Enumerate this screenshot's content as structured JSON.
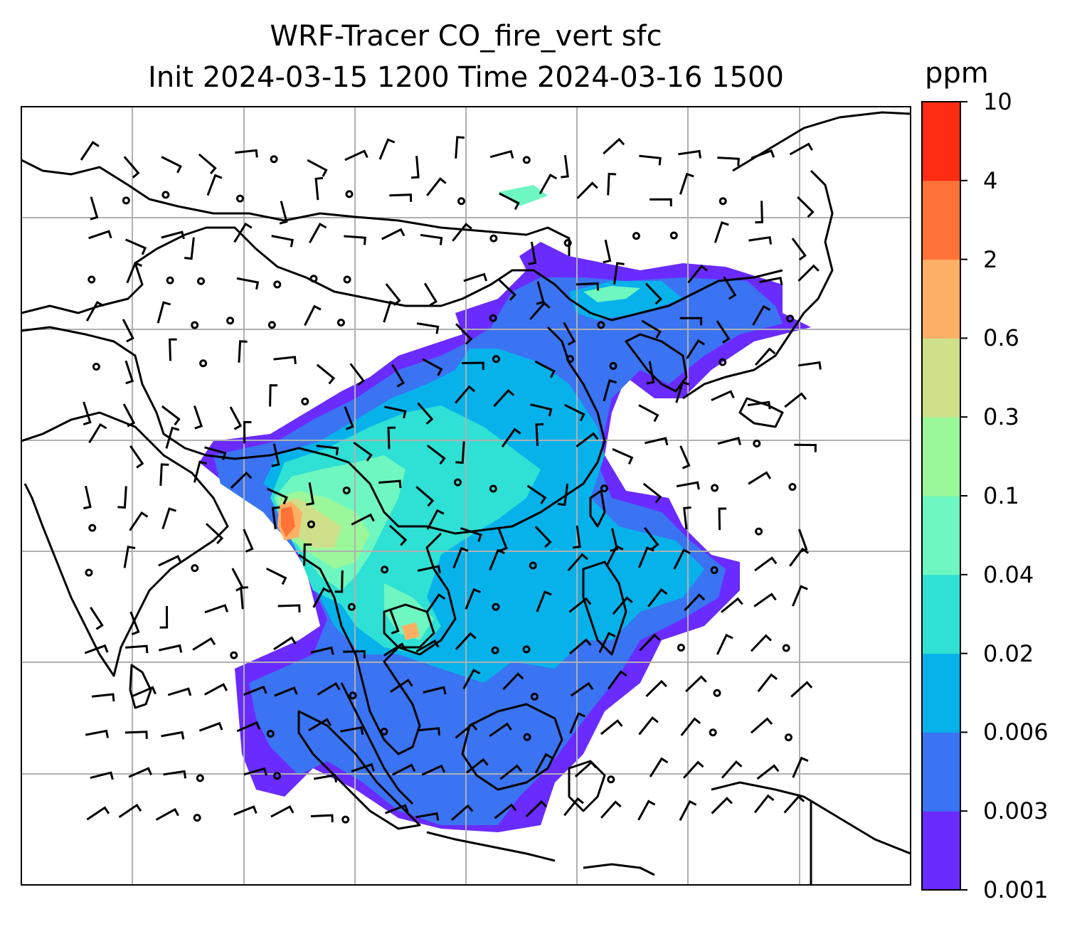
{
  "title": {
    "line1": "WRF-Tracer CO_fire_vert sfc",
    "line2": "Init 2024-03-15 1200 Time 2024-03-16 1500"
  },
  "colorbar": {
    "unit": "ppm",
    "levels": [
      "0.001",
      "0.003",
      "0.006",
      "0.02",
      "0.04",
      "0.1",
      "0.3",
      "0.6",
      "2",
      "4",
      "10"
    ],
    "colors": [
      "#6a2bff",
      "#3a74f2",
      "#07b2ea",
      "#2fe0d4",
      "#6ef7c0",
      "#9af79a",
      "#cfe08a",
      "#fdb065",
      "#ff7339",
      "#ff2c14"
    ]
  },
  "map": {
    "field": "CO_fire_vert",
    "gridlines": true,
    "background": "#ffffff",
    "coastline_color": "#000000",
    "gridline_color": "#b0b0b0"
  }
}
